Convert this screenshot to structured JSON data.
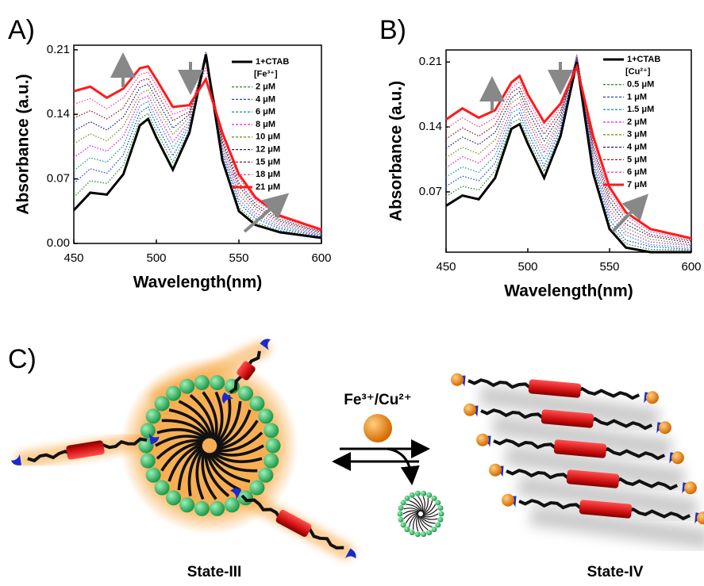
{
  "chart_data": [
    {
      "type": "line",
      "panel": "A)",
      "x_label": "Wavelength(nm)",
      "y_label": "Absorbance (a.u.)",
      "legend_title": "[Fe³⁺]",
      "x": [
        450,
        460,
        470,
        480,
        490,
        495,
        500,
        510,
        520,
        530,
        540,
        550,
        560,
        575,
        600
      ],
      "xlim": [
        450,
        600
      ],
      "ylim": [
        0,
        0.215
      ],
      "xticks": [
        450,
        500,
        550,
        600
      ],
      "yticks": [
        {
          "value": 0,
          "label": "0.00"
        },
        0.07,
        0.14,
        0.21
      ],
      "series": [
        {
          "name": "1+CTAB",
          "color": "#000000",
          "style": "solid",
          "values": [
            0.036,
            0.055,
            0.053,
            0.075,
            0.128,
            0.135,
            0.115,
            0.08,
            0.12,
            0.205,
            0.09,
            0.035,
            0.02,
            0.012,
            0.006
          ]
        },
        {
          "name": "2 μM",
          "color": "#1f8f1f",
          "style": "dotted",
          "values": [
            0.05,
            0.068,
            0.065,
            0.085,
            0.135,
            0.141,
            0.122,
            0.088,
            0.123,
            0.206,
            0.093,
            0.039,
            0.023,
            0.014,
            0.007
          ]
        },
        {
          "name": "4 μM",
          "color": "#1f3fff",
          "style": "dotted",
          "values": [
            0.065,
            0.081,
            0.076,
            0.096,
            0.142,
            0.148,
            0.129,
            0.095,
            0.127,
            0.207,
            0.097,
            0.044,
            0.027,
            0.016,
            0.008
          ]
        },
        {
          "name": "6 μM",
          "color": "#1a9a9a",
          "style": "dotted",
          "values": [
            0.079,
            0.093,
            0.088,
            0.106,
            0.149,
            0.154,
            0.136,
            0.103,
            0.13,
            0.208,
            0.1,
            0.048,
            0.03,
            0.018,
            0.009
          ]
        },
        {
          "name": "8 μM",
          "color": "#e01fe0",
          "style": "dotted",
          "values": [
            0.093,
            0.106,
            0.1,
            0.116,
            0.156,
            0.16,
            0.143,
            0.11,
            0.133,
            0.207,
            0.103,
            0.053,
            0.033,
            0.02,
            0.01
          ]
        },
        {
          "name": "10 μM",
          "color": "#8a8a1a",
          "style": "dotted",
          "values": [
            0.108,
            0.119,
            0.111,
            0.127,
            0.162,
            0.167,
            0.15,
            0.118,
            0.137,
            0.205,
            0.107,
            0.057,
            0.037,
            0.022,
            0.011
          ]
        },
        {
          "name": "12 μM",
          "color": "#1a1a8a",
          "style": "dotted",
          "values": [
            0.122,
            0.132,
            0.123,
            0.137,
            0.169,
            0.173,
            0.157,
            0.125,
            0.14,
            0.202,
            0.11,
            0.062,
            0.04,
            0.024,
            0.012
          ]
        },
        {
          "name": "15 μM",
          "color": "#8a1a1a",
          "style": "dotted",
          "values": [
            0.136,
            0.144,
            0.135,
            0.147,
            0.176,
            0.179,
            0.164,
            0.133,
            0.143,
            0.198,
            0.113,
            0.066,
            0.043,
            0.026,
            0.013
          ]
        },
        {
          "name": "18 μM",
          "color": "#ff3f9f",
          "style": "dotted",
          "values": [
            0.151,
            0.157,
            0.146,
            0.158,
            0.183,
            0.186,
            0.171,
            0.14,
            0.147,
            0.19,
            0.117,
            0.071,
            0.047,
            0.028,
            0.014
          ]
        },
        {
          "name": "21 μM",
          "color": "#ff1a1a",
          "style": "solid",
          "values": [
            0.165,
            0.17,
            0.158,
            0.168,
            0.19,
            0.192,
            0.178,
            0.148,
            0.15,
            0.178,
            0.12,
            0.075,
            0.05,
            0.03,
            0.015
          ]
        }
      ]
    },
    {
      "type": "line",
      "panel": "B)",
      "x_label": "Wavelength(nm)",
      "y_label": "Absorbance (a.u.)",
      "legend_title": "[Cu²⁺]",
      "x": [
        450,
        460,
        470,
        480,
        490,
        495,
        500,
        510,
        520,
        530,
        540,
        550,
        560,
        575,
        600
      ],
      "xlim": [
        450,
        600
      ],
      "ylim": [
        0.005,
        0.223
      ],
      "xticks": [
        450,
        500,
        550,
        600
      ],
      "yticks": [
        0.07,
        0.14,
        0.21
      ],
      "series": [
        {
          "name": "1+CTAB",
          "color": "#000000",
          "style": "solid",
          "values": [
            0.055,
            0.066,
            0.062,
            0.085,
            0.138,
            0.143,
            0.122,
            0.085,
            0.13,
            0.21,
            0.09,
            0.03,
            0.01,
            0.005,
            0.005
          ]
        },
        {
          "name": "0.5 μM",
          "color": "#1f8f1f",
          "style": "dotted",
          "values": [
            0.065,
            0.076,
            0.072,
            0.093,
            0.144,
            0.149,
            0.128,
            0.092,
            0.134,
            0.213,
            0.094,
            0.035,
            0.014,
            0.008,
            0.007
          ]
        },
        {
          "name": "1 μM",
          "color": "#1f3fff",
          "style": "dotted",
          "values": [
            0.076,
            0.087,
            0.082,
            0.101,
            0.149,
            0.155,
            0.134,
            0.098,
            0.138,
            0.215,
            0.099,
            0.04,
            0.018,
            0.011,
            0.008
          ]
        },
        {
          "name": "1.5 μM",
          "color": "#1a9a9a",
          "style": "dotted",
          "values": [
            0.086,
            0.097,
            0.091,
            0.109,
            0.155,
            0.16,
            0.14,
            0.105,
            0.142,
            0.217,
            0.103,
            0.045,
            0.023,
            0.013,
            0.01
          ]
        },
        {
          "name": "2 μM",
          "color": "#e01fe0",
          "style": "dotted",
          "values": [
            0.096,
            0.108,
            0.101,
            0.117,
            0.16,
            0.166,
            0.146,
            0.112,
            0.146,
            0.218,
            0.108,
            0.05,
            0.027,
            0.016,
            0.012
          ]
        },
        {
          "name": "3 μM",
          "color": "#8a8a1a",
          "style": "dotted",
          "values": [
            0.107,
            0.118,
            0.111,
            0.126,
            0.166,
            0.172,
            0.151,
            0.118,
            0.149,
            0.216,
            0.112,
            0.055,
            0.031,
            0.019,
            0.013
          ]
        },
        {
          "name": "4 μM",
          "color": "#1a1a8a",
          "style": "dotted",
          "values": [
            0.117,
            0.129,
            0.121,
            0.134,
            0.171,
            0.178,
            0.157,
            0.125,
            0.153,
            0.214,
            0.117,
            0.06,
            0.035,
            0.022,
            0.015
          ]
        },
        {
          "name": "5 μM",
          "color": "#8a1a1a",
          "style": "dotted",
          "values": [
            0.127,
            0.139,
            0.13,
            0.142,
            0.177,
            0.183,
            0.163,
            0.132,
            0.157,
            0.211,
            0.121,
            0.065,
            0.04,
            0.024,
            0.017
          ]
        },
        {
          "name": "6 μM",
          "color": "#ff3f9f",
          "style": "dotted",
          "values": [
            0.138,
            0.15,
            0.14,
            0.15,
            0.182,
            0.189,
            0.169,
            0.138,
            0.161,
            0.208,
            0.126,
            0.07,
            0.044,
            0.027,
            0.018
          ]
        },
        {
          "name": "7 μM",
          "color": "#ff1a1a",
          "style": "solid",
          "values": [
            0.148,
            0.16,
            0.15,
            0.158,
            0.188,
            0.195,
            0.175,
            0.145,
            0.165,
            0.205,
            0.13,
            0.075,
            0.048,
            0.03,
            0.02
          ]
        }
      ]
    }
  ],
  "diagram": {
    "panel": "C)",
    "reagent": "Fe³⁺/Cu²⁺",
    "states": [
      "State-III",
      "State-IV"
    ]
  }
}
